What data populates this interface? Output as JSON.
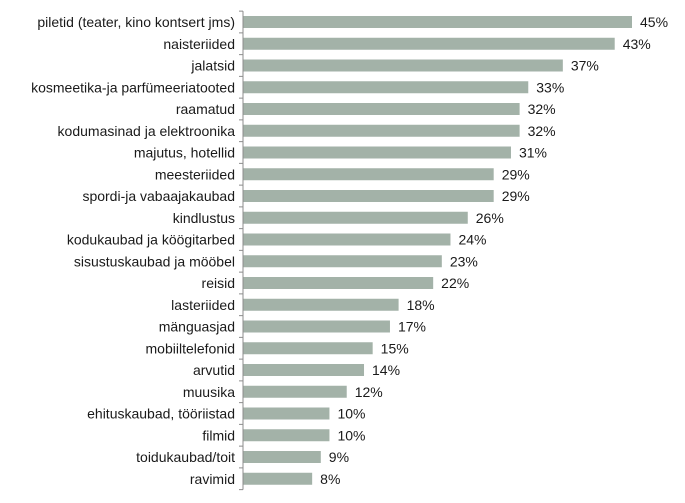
{
  "chart_data": {
    "type": "bar",
    "orientation": "horizontal",
    "categories": [
      "piletid (teater, kino kontsert jms)",
      "naisteriided",
      "jalatsid",
      "kosmeetika-ja parfümeeriatooted",
      "raamatud",
      "kodumasinad ja elektroonika",
      "majutus, hotellid",
      "meesteriided",
      "spordi-ja vabaajakaubad",
      "kindlustus",
      "kodukaubad ja köögitarbed",
      "sisustuskaubad ja mööbel",
      "reisid",
      "lasteriided",
      "mänguasjad",
      "mobiiltelefonid",
      "arvutid",
      "muusika",
      "ehituskaubad, tööriistad",
      "filmid",
      "toidukaubad/toit",
      "ravimid"
    ],
    "values": [
      45,
      43,
      37,
      33,
      32,
      32,
      31,
      29,
      29,
      26,
      24,
      23,
      22,
      18,
      17,
      15,
      14,
      12,
      10,
      10,
      9,
      8
    ],
    "value_labels": [
      "45%",
      "43%",
      "37%",
      "33%",
      "32%",
      "32%",
      "31%",
      "29%",
      "29%",
      "26%",
      "24%",
      "23%",
      "22%",
      "18%",
      "17%",
      "15%",
      "14%",
      "12%",
      "10%",
      "10%",
      "9%",
      "8%"
    ],
    "xlim": [
      0,
      45
    ],
    "grid": false,
    "colors": {
      "bar": "#a3b2a8",
      "axis": "#8c8c8c",
      "text": "#1a1a1a"
    }
  }
}
